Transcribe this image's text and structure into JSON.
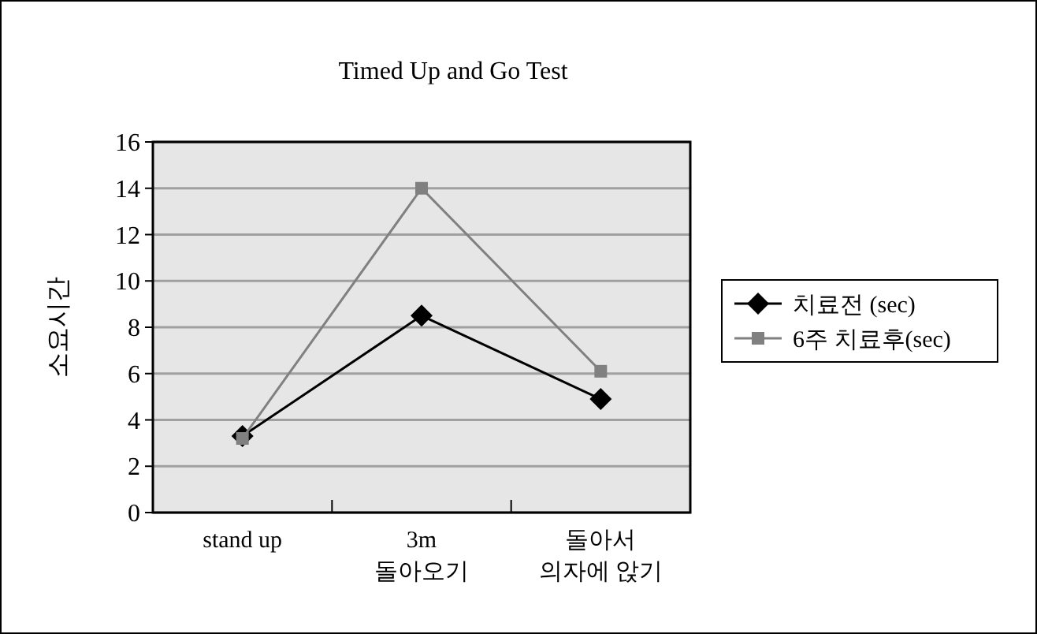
{
  "chart_data": {
    "type": "line",
    "title": "Timed Up and Go Test",
    "ylabel": "소요시간",
    "categories": [
      "stand up",
      "3m\n돌아오기",
      "돌아서\n의자에 앉기"
    ],
    "series": [
      {
        "name": "치료전 (sec)",
        "color": "#000000",
        "values": [
          3.3,
          8.5,
          4.9
        ],
        "marker": "diamond"
      },
      {
        "name": "6주 치료후(sec)",
        "color": "#808080",
        "values": [
          3.2,
          14,
          6.1
        ],
        "marker": "square"
      }
    ],
    "ylim": [
      0,
      16
    ],
    "yticks": [
      0,
      2,
      4,
      6,
      8,
      10,
      12,
      14,
      16
    ],
    "grid": "y",
    "legend": "right"
  }
}
